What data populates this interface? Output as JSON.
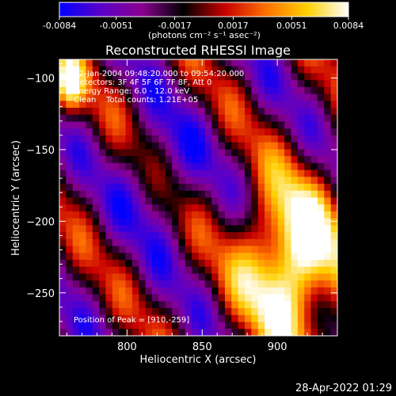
{
  "colorbar": {
    "ticks": [
      "-0.0084",
      "-0.0051",
      "-0.0017",
      "0.0017",
      "0.0051",
      "0.0084"
    ],
    "tick_values": [
      -0.0084,
      -0.0051,
      -0.0017,
      0.0017,
      0.0051,
      0.0084
    ],
    "range": [
      -0.0084,
      0.0084
    ],
    "unit_label": "(photons cm⁻² s⁻¹ asec⁻²)",
    "colormap": [
      "#0000ff",
      "#5a00c8",
      "#8a0090",
      "#000000",
      "#c80000",
      "#ff7000",
      "#ffd000",
      "#ffffff"
    ]
  },
  "chart_data": {
    "type": "heatmap",
    "title": "Reconstructed RHESSI Image",
    "xlabel": "Heliocentric X (arcsec)",
    "ylabel": "Heliocentric Y (arcsec)",
    "xlim": [
      755,
      940
    ],
    "ylim": [
      -280,
      -87
    ],
    "x_ticks": [
      800,
      850,
      900
    ],
    "y_ticks": [
      -100,
      -150,
      -200,
      -250
    ],
    "x_tick_labels": [
      "800",
      "850",
      "900"
    ],
    "y_tick_labels": [
      "−100",
      "−150",
      "−200",
      "−250"
    ],
    "info_lines": [
      "12-Jan-2004 09:48:20.000 to 09:54:20.000",
      "Detectors: 3F 4F 5F 6F 7F 8F, Att 0",
      "Energy Range: 6.0 - 12.0 keV",
      "Clean    Total counts: 1.21E+05"
    ],
    "peak_label": "Position of Peak = [910,-259]",
    "peak_position": [
      910,
      -259
    ]
  },
  "timestamp": "28-Apr-2022 01:29"
}
